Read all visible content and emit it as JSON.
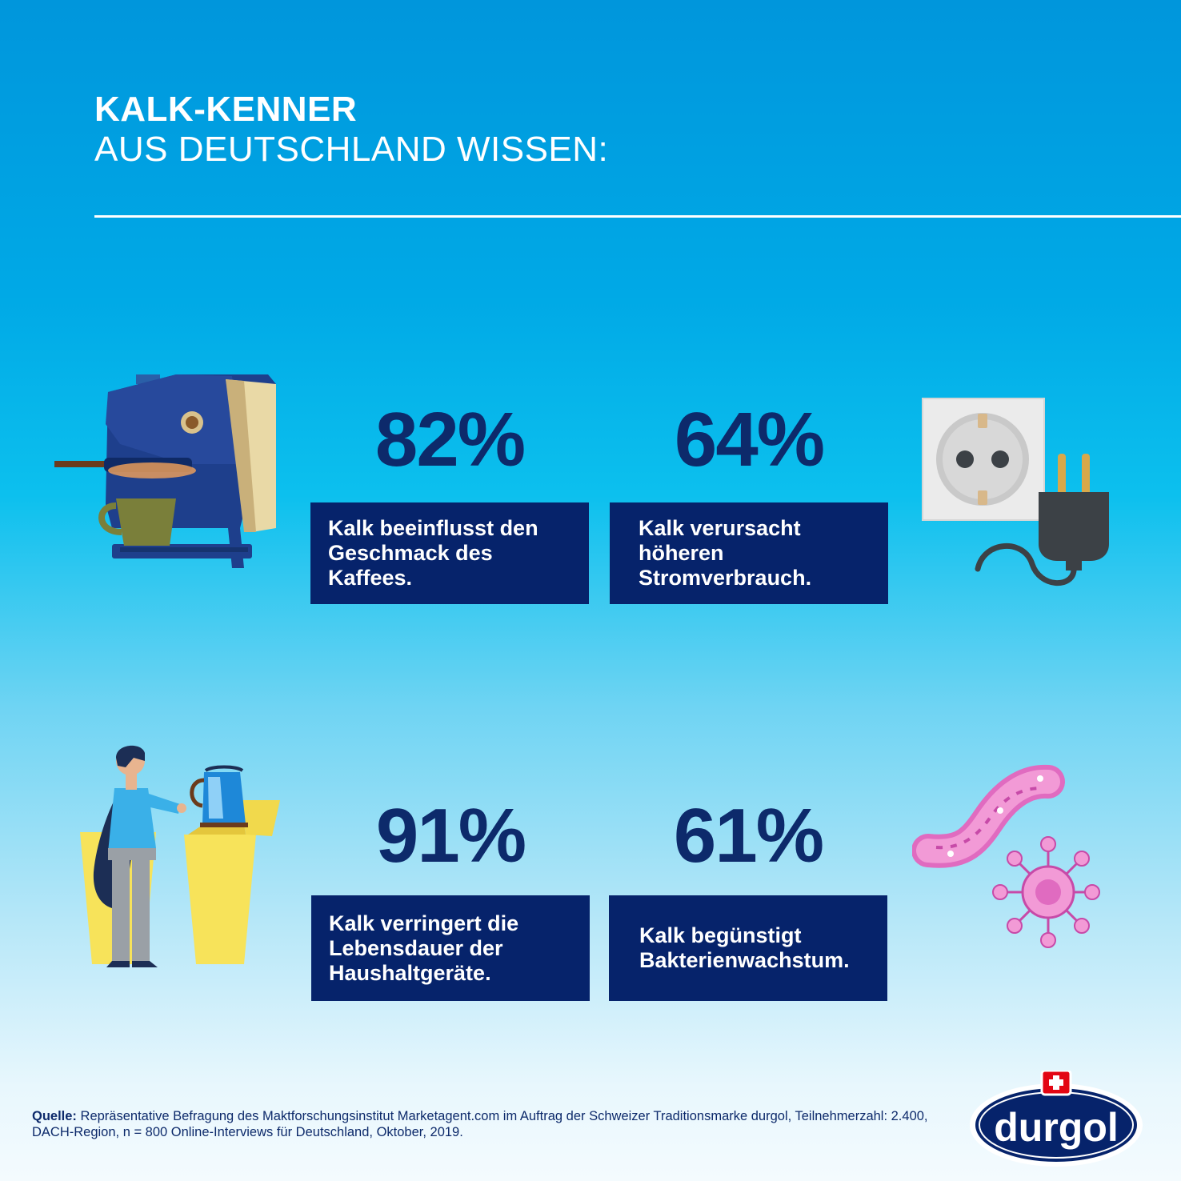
{
  "header": {
    "title_bold": "KALK-KENNER",
    "title_light": "AUS DEUTSCHLAND WISSEN:"
  },
  "stats": [
    {
      "value": "82%",
      "text": "Kalk beeinflusst den Geschmack des Kaffees.",
      "icon": "coffee-machine-icon"
    },
    {
      "value": "64%",
      "text": "Kalk verursacht höheren Stromverbrauch.",
      "icon": "power-plug-socket-icon"
    },
    {
      "value": "91%",
      "text": "Kalk verringert die Lebensdauer der Haushaltgeräte.",
      "icon": "person-kettle-icon"
    },
    {
      "value": "61%",
      "text": "Kalk begünstigt Bakterienwachstum.",
      "icon": "bacteria-icon"
    }
  ],
  "source": {
    "label": "Quelle:",
    "text": " Repräsentative Befragung des Maktforschungsinstitut Marketagent.com im Auftrag der Schweizer Traditionsmarke durgol, Teilnehmerzahl: 2.400, DACH-Region, n = 800 Online-Interviews für Deutschland, Oktober, 2019."
  },
  "brand": {
    "logo_text": "durgol"
  },
  "colors": {
    "navy": "#06236b",
    "stat_text": "#0d2a6b",
    "sky": "#00a9e6"
  }
}
